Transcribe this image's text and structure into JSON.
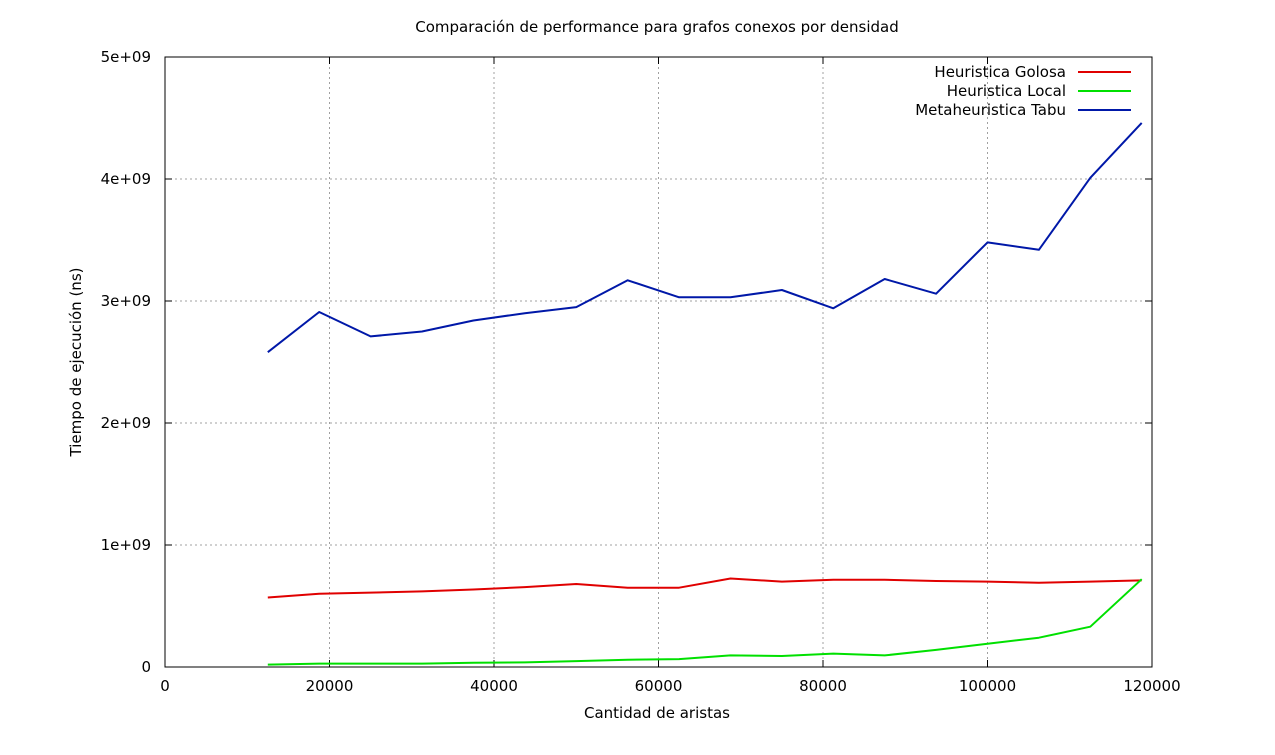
{
  "chart_data": {
    "type": "line",
    "title": "Comparación de performance para grafos conexos por densidad",
    "xlabel": "Cantidad de aristas",
    "ylabel": "Tiempo de ejecución (ns)",
    "xlim": [
      0,
      120000
    ],
    "ylim": [
      0,
      5000000000
    ],
    "x_ticks": [
      0,
      20000,
      40000,
      60000,
      80000,
      100000,
      120000
    ],
    "x_tick_labels": [
      "0",
      "20000",
      "40000",
      "60000",
      "80000",
      "100000",
      "120000"
    ],
    "y_ticks": [
      0,
      1000000000,
      2000000000,
      3000000000,
      4000000000,
      5000000000
    ],
    "y_tick_labels": [
      "0",
      "1e+09",
      "2e+09",
      "3e+09",
      "4e+09",
      "5e+09"
    ],
    "grid": true,
    "legend_position": "top-right",
    "x": [
      12500,
      18750,
      25000,
      31250,
      37500,
      43750,
      50000,
      56250,
      62500,
      68750,
      75000,
      81250,
      87500,
      93750,
      100000,
      106250,
      112500,
      118750
    ],
    "series": [
      {
        "name": "Heuristica Golosa",
        "color": "#e00000",
        "values": [
          570000000,
          600000000,
          610000000,
          620000000,
          635000000,
          655000000,
          680000000,
          650000000,
          650000000,
          725000000,
          700000000,
          715000000,
          715000000,
          705000000,
          700000000,
          690000000,
          700000000,
          710000000
        ]
      },
      {
        "name": "Heuristica Local",
        "color": "#00e000",
        "values": [
          20000000,
          28000000,
          28000000,
          28000000,
          35000000,
          38000000,
          48000000,
          60000000,
          65000000,
          95000000,
          90000000,
          110000000,
          95000000,
          140000000,
          190000000,
          240000000,
          330000000,
          720000000
        ]
      },
      {
        "name": "Metaheuristica Tabu",
        "color": "#0018a8",
        "values": [
          2580000000,
          2910000000,
          2710000000,
          2750000000,
          2840000000,
          2900000000,
          2950000000,
          3170000000,
          3030000000,
          3030000000,
          3090000000,
          2940000000,
          3180000000,
          3060000000,
          3480000000,
          3420000000,
          4010000000,
          4460000000
        ]
      }
    ]
  }
}
